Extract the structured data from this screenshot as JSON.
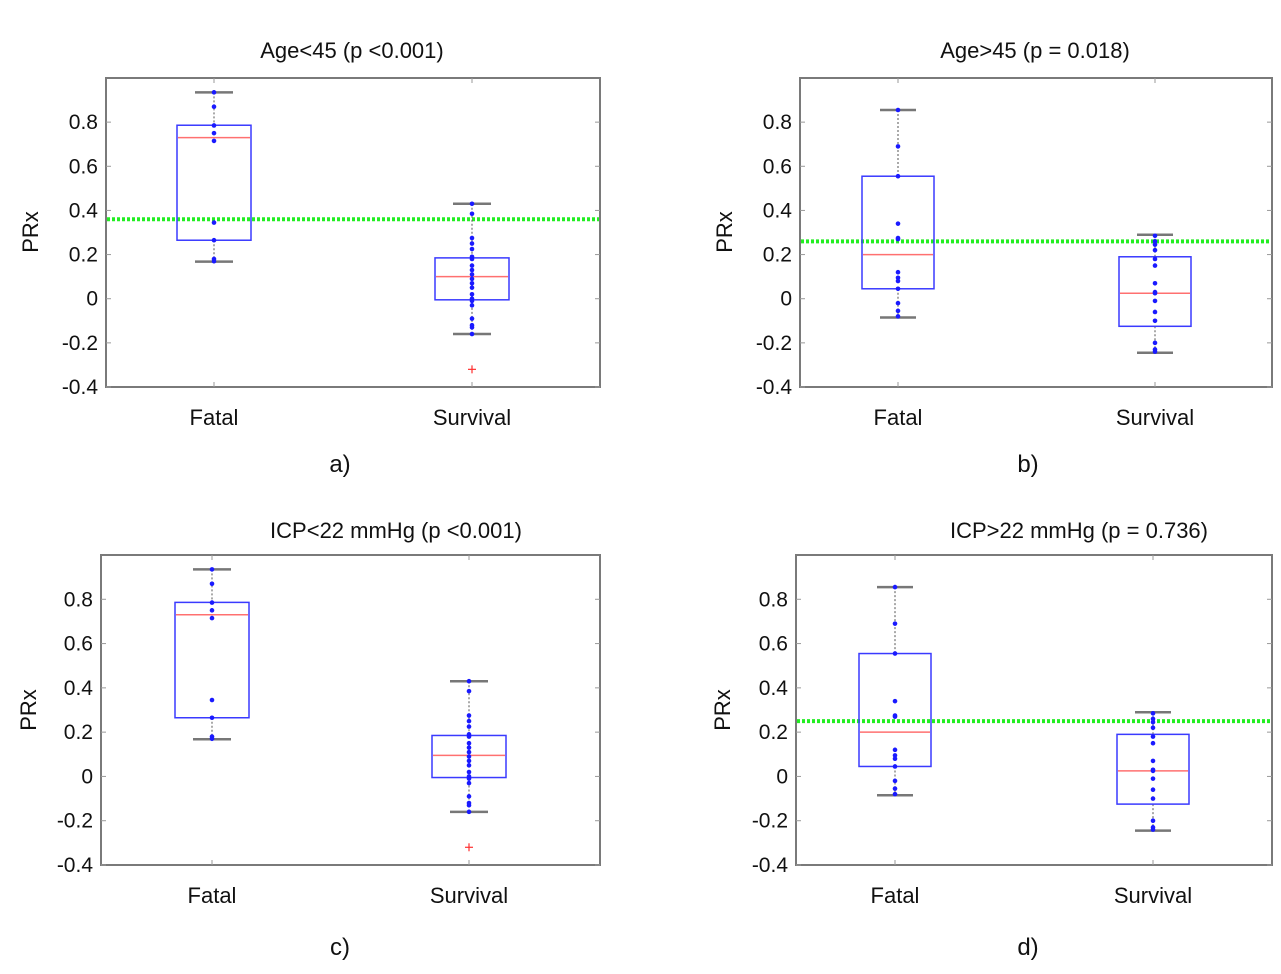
{
  "chart_data": [
    {
      "type": "box",
      "panel_label": "a)",
      "title": "Age<45 (p <0.001)",
      "xlabel": "",
      "ylabel": "PRx",
      "ylim": [
        -0.4,
        1.0
      ],
      "yticks": [
        -0.4,
        -0.2,
        0,
        0.2,
        0.4,
        0.6,
        0.8
      ],
      "ytick_labels": [
        "-0.4",
        "-0.2",
        "0",
        "0.2",
        "0.4",
        "0.6",
        "0.8"
      ],
      "categories": [
        "Fatal",
        "Survival"
      ],
      "threshold_line": 0.36,
      "boxes": [
        {
          "name": "Fatal",
          "whisker_high": 0.935,
          "q3": 0.786,
          "median": 0.73,
          "q1": 0.265,
          "whisker_low": 0.168,
          "points": [
            0.935,
            0.87,
            0.785,
            0.75,
            0.715,
            0.345,
            0.265,
            0.18,
            0.17
          ],
          "outliers": []
        },
        {
          "name": "Survival",
          "whisker_high": 0.43,
          "q3": 0.185,
          "median": 0.1,
          "q1": -0.005,
          "whisker_low": -0.16,
          "points": [
            0.43,
            0.385,
            0.275,
            0.25,
            0.225,
            0.19,
            0.18,
            0.15,
            0.13,
            0.11,
            0.09,
            0.07,
            0.05,
            0.02,
            0.0,
            -0.01,
            -0.03,
            -0.09,
            -0.12,
            -0.13,
            -0.16
          ],
          "outliers": [
            -0.32
          ]
        }
      ]
    },
    {
      "type": "box",
      "panel_label": "b)",
      "title": "Age>45 (p = 0.018)",
      "xlabel": "",
      "ylabel": "PRx",
      "ylim": [
        -0.4,
        1.0
      ],
      "yticks": [
        -0.4,
        -0.2,
        0,
        0.2,
        0.4,
        0.6,
        0.8
      ],
      "ytick_labels": [
        "-0.4",
        "-0.2",
        "0",
        "0.2",
        "0.4",
        "0.6",
        "0.8"
      ],
      "categories": [
        "Fatal",
        "Survival"
      ],
      "threshold_line": 0.26,
      "boxes": [
        {
          "name": "Fatal",
          "whisker_high": 0.855,
          "q3": 0.555,
          "median": 0.2,
          "q1": 0.045,
          "whisker_low": -0.085,
          "points": [
            0.855,
            0.69,
            0.555,
            0.34,
            0.275,
            0.27,
            0.12,
            0.095,
            0.08,
            0.045,
            -0.02,
            -0.055,
            -0.08
          ],
          "outliers": []
        },
        {
          "name": "Survival",
          "whisker_high": 0.29,
          "q3": 0.19,
          "median": 0.025,
          "q1": -0.125,
          "whisker_low": -0.245,
          "points": [
            0.285,
            0.26,
            0.245,
            0.22,
            0.18,
            0.15,
            0.07,
            0.03,
            0.025,
            -0.01,
            -0.06,
            -0.1,
            -0.2,
            -0.23,
            -0.24
          ],
          "outliers": []
        }
      ]
    },
    {
      "type": "box",
      "panel_label": "c)",
      "title": "ICP<22 mmHg (p <0.001)",
      "xlabel": "",
      "ylabel": "PRx",
      "ylim": [
        -0.4,
        1.0
      ],
      "yticks": [
        -0.4,
        -0.2,
        0,
        0.2,
        0.4,
        0.6,
        0.8
      ],
      "ytick_labels": [
        "-0.4",
        "-0.2",
        "0",
        "0.2",
        "0.4",
        "0.6",
        "0.8"
      ],
      "categories": [
        "Fatal",
        "Survival"
      ],
      "threshold_line": null,
      "boxes": [
        {
          "name": "Fatal",
          "whisker_high": 0.935,
          "q3": 0.786,
          "median": 0.73,
          "q1": 0.265,
          "whisker_low": 0.168,
          "points": [
            0.935,
            0.87,
            0.785,
            0.75,
            0.715,
            0.345,
            0.265,
            0.18,
            0.17
          ],
          "outliers": []
        },
        {
          "name": "Survival",
          "whisker_high": 0.43,
          "q3": 0.185,
          "median": 0.095,
          "q1": -0.005,
          "whisker_low": -0.16,
          "points": [
            0.43,
            0.385,
            0.275,
            0.25,
            0.225,
            0.19,
            0.18,
            0.15,
            0.13,
            0.11,
            0.09,
            0.07,
            0.05,
            0.02,
            0.0,
            -0.01,
            -0.03,
            -0.09,
            -0.12,
            -0.13,
            -0.16
          ],
          "outliers": [
            -0.32
          ]
        }
      ]
    },
    {
      "type": "box",
      "panel_label": "d)",
      "title": "ICP>22 mmHg (p = 0.736)",
      "xlabel": "",
      "ylabel": "PRx",
      "ylim": [
        -0.4,
        1.0
      ],
      "yticks": [
        -0.4,
        -0.2,
        0,
        0.2,
        0.4,
        0.6,
        0.8
      ],
      "ytick_labels": [
        "-0.4",
        "-0.2",
        "0",
        "0.2",
        "0.4",
        "0.6",
        "0.8"
      ],
      "categories": [
        "Fatal",
        "Survival"
      ],
      "threshold_line": 0.25,
      "boxes": [
        {
          "name": "Fatal",
          "whisker_high": 0.855,
          "q3": 0.555,
          "median": 0.2,
          "q1": 0.045,
          "whisker_low": -0.085,
          "points": [
            0.855,
            0.69,
            0.555,
            0.34,
            0.275,
            0.27,
            0.12,
            0.095,
            0.08,
            0.045,
            -0.02,
            -0.055,
            -0.08
          ],
          "outliers": []
        },
        {
          "name": "Survival",
          "whisker_high": 0.29,
          "q3": 0.19,
          "median": 0.025,
          "q1": -0.125,
          "whisker_low": -0.245,
          "points": [
            0.285,
            0.26,
            0.245,
            0.22,
            0.18,
            0.15,
            0.07,
            0.03,
            0.025,
            -0.01,
            -0.06,
            -0.1,
            -0.2,
            -0.23,
            -0.24
          ],
          "outliers": []
        }
      ]
    }
  ],
  "colors": {
    "box": "#3a3aff",
    "median": "#ff7070",
    "points": "#1a1aff",
    "whisker_cap": "#777777",
    "whisker_line": "#555555",
    "threshold": "#22ee22",
    "outlier": "#ff3030",
    "axes": "#7a7a7a"
  }
}
